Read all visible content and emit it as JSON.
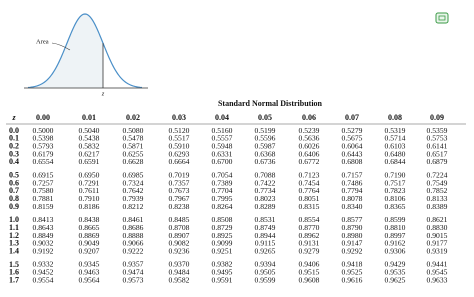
{
  "diagram": {
    "area_label": "Area",
    "z_label": "z"
  },
  "table": {
    "title": "Standard Normal Distribution",
    "columns": [
      "z",
      "0.00",
      "0.01",
      "0.02",
      "0.03",
      "0.04",
      "0.05",
      "0.06",
      "0.07",
      "0.08",
      "0.09"
    ],
    "rows": [
      {
        "z": "0.0",
        "values": [
          "0.5000",
          "0.5040",
          "0.5080",
          "0.5120",
          "0.5160",
          "0.5199",
          "0.5239",
          "0.5279",
          "0.5319",
          "0.5359"
        ]
      },
      {
        "z": "0.1",
        "values": [
          "0.5398",
          "0.5438",
          "0.5478",
          "0.5517",
          "0.5557",
          "0.5596",
          "0.5636",
          "0.5675",
          "0.5714",
          "0.5753"
        ]
      },
      {
        "z": "0.2",
        "values": [
          "0.5793",
          "0.5832",
          "0.5871",
          "0.5910",
          "0.5948",
          "0.5987",
          "0.6026",
          "0.6064",
          "0.6103",
          "0.6141"
        ]
      },
      {
        "z": "0.3",
        "values": [
          "0.6179",
          "0.6217",
          "0.6255",
          "0.6293",
          "0.6331",
          "0.6368",
          "0.6406",
          "0.6443",
          "0.6480",
          "0.6517"
        ]
      },
      {
        "z": "0.4",
        "values": [
          "0.6554",
          "0.6591",
          "0.6628",
          "0.6664",
          "0.6700",
          "0.6736",
          "0.6772",
          "0.6808",
          "0.6844",
          "0.6879"
        ]
      },
      {
        "z": "0.5",
        "values": [
          "0.6915",
          "0.6950",
          "0.6985",
          "0.7019",
          "0.7054",
          "0.7088",
          "0.7123",
          "0.7157",
          "0.7190",
          "0.7224"
        ]
      },
      {
        "z": "0.6",
        "values": [
          "0.7257",
          "0.7291",
          "0.7324",
          "0.7357",
          "0.7389",
          "0.7422",
          "0.7454",
          "0.7486",
          "0.7517",
          "0.7549"
        ]
      },
      {
        "z": "0.7",
        "values": [
          "0.7580",
          "0.7611",
          "0.7642",
          "0.7673",
          "0.7704",
          "0.7734",
          "0.7764",
          "0.7794",
          "0.7823",
          "0.7852"
        ]
      },
      {
        "z": "0.8",
        "values": [
          "0.7881",
          "0.7910",
          "0.7939",
          "0.7967",
          "0.7995",
          "0.8023",
          "0.8051",
          "0.8078",
          "0.8106",
          "0.8133"
        ]
      },
      {
        "z": "0.9",
        "values": [
          "0.8159",
          "0.8186",
          "0.8212",
          "0.8238",
          "0.8264",
          "0.8289",
          "0.8315",
          "0.8340",
          "0.8365",
          "0.8389"
        ]
      },
      {
        "z": "1.0",
        "values": [
          "0.8413",
          "0.8438",
          "0.8461",
          "0.8485",
          "0.8508",
          "0.8531",
          "0.8554",
          "0.8577",
          "0.8599",
          "0.8621"
        ]
      },
      {
        "z": "1.1",
        "values": [
          "0.8643",
          "0.8665",
          "0.8686",
          "0.8708",
          "0.8729",
          "0.8749",
          "0.8770",
          "0.8790",
          "0.8810",
          "0.8830"
        ]
      },
      {
        "z": "1.2",
        "values": [
          "0.8849",
          "0.8869",
          "0.8888",
          "0.8907",
          "0.8925",
          "0.8944",
          "0.8962",
          "0.8980",
          "0.8997",
          "0.9015"
        ]
      },
      {
        "z": "1.3",
        "values": [
          "0.9032",
          "0.9049",
          "0.9066",
          "0.9082",
          "0.9099",
          "0.9115",
          "0.9131",
          "0.9147",
          "0.9162",
          "0.9177"
        ]
      },
      {
        "z": "1.4",
        "values": [
          "0.9192",
          "0.9207",
          "0.9222",
          "0.9236",
          "0.9251",
          "0.9265",
          "0.9279",
          "0.9292",
          "0.9306",
          "0.9319"
        ]
      },
      {
        "z": "1.5",
        "values": [
          "0.9332",
          "0.9345",
          "0.9357",
          "0.9370",
          "0.9382",
          "0.9394",
          "0.9406",
          "0.9418",
          "0.9429",
          "0.9441"
        ]
      },
      {
        "z": "1.6",
        "values": [
          "0.9452",
          "0.9463",
          "0.9474",
          "0.9484",
          "0.9495",
          "0.9505",
          "0.9515",
          "0.9525",
          "0.9535",
          "0.9545"
        ]
      },
      {
        "z": "1.7",
        "values": [
          "0.9554",
          "0.9564",
          "0.9573",
          "0.9582",
          "0.9591",
          "0.9599",
          "0.9608",
          "0.9616",
          "0.9625",
          "0.9633"
        ]
      }
    ]
  }
}
